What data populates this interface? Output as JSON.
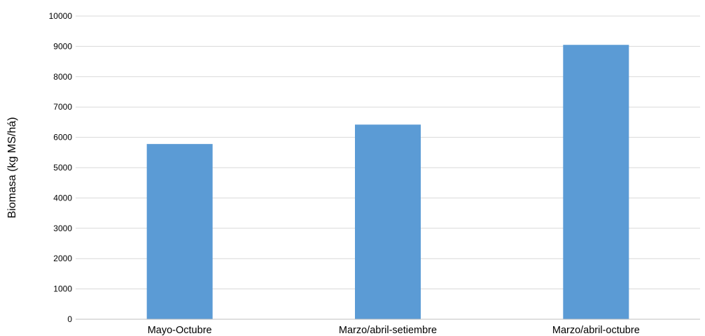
{
  "chart_data": {
    "type": "bar",
    "categories": [
      "Mayo-Octubre",
      "Marzo/abril-setiembre",
      "Marzo/abril-octubre"
    ],
    "values": [
      5780,
      6420,
      9050
    ],
    "xlabel": "",
    "ylabel": "Biomasa (kg MS/há)",
    "ylim": [
      0,
      10000
    ],
    "yticks": [
      0,
      1000,
      2000,
      3000,
      4000,
      5000,
      6000,
      7000,
      8000,
      9000,
      10000
    ],
    "grid": true,
    "legend": "none",
    "colors": {
      "bar": "#5b9bd5",
      "grid": "#d9d9d9",
      "axis": "#bfbfbf"
    }
  }
}
